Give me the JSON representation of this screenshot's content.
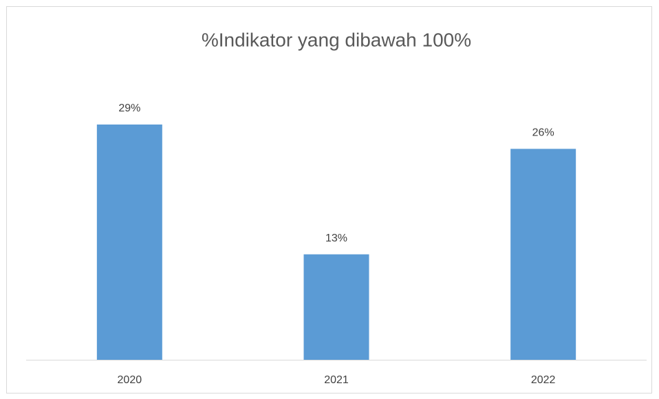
{
  "chart_data": {
    "type": "bar",
    "title": "%Indikator yang dibawah 100%",
    "categories": [
      "2020",
      "2021",
      "2022"
    ],
    "values": [
      29,
      13,
      26
    ],
    "value_labels": [
      "29%",
      "13%",
      "26%"
    ],
    "color": "#5b9bd5"
  }
}
